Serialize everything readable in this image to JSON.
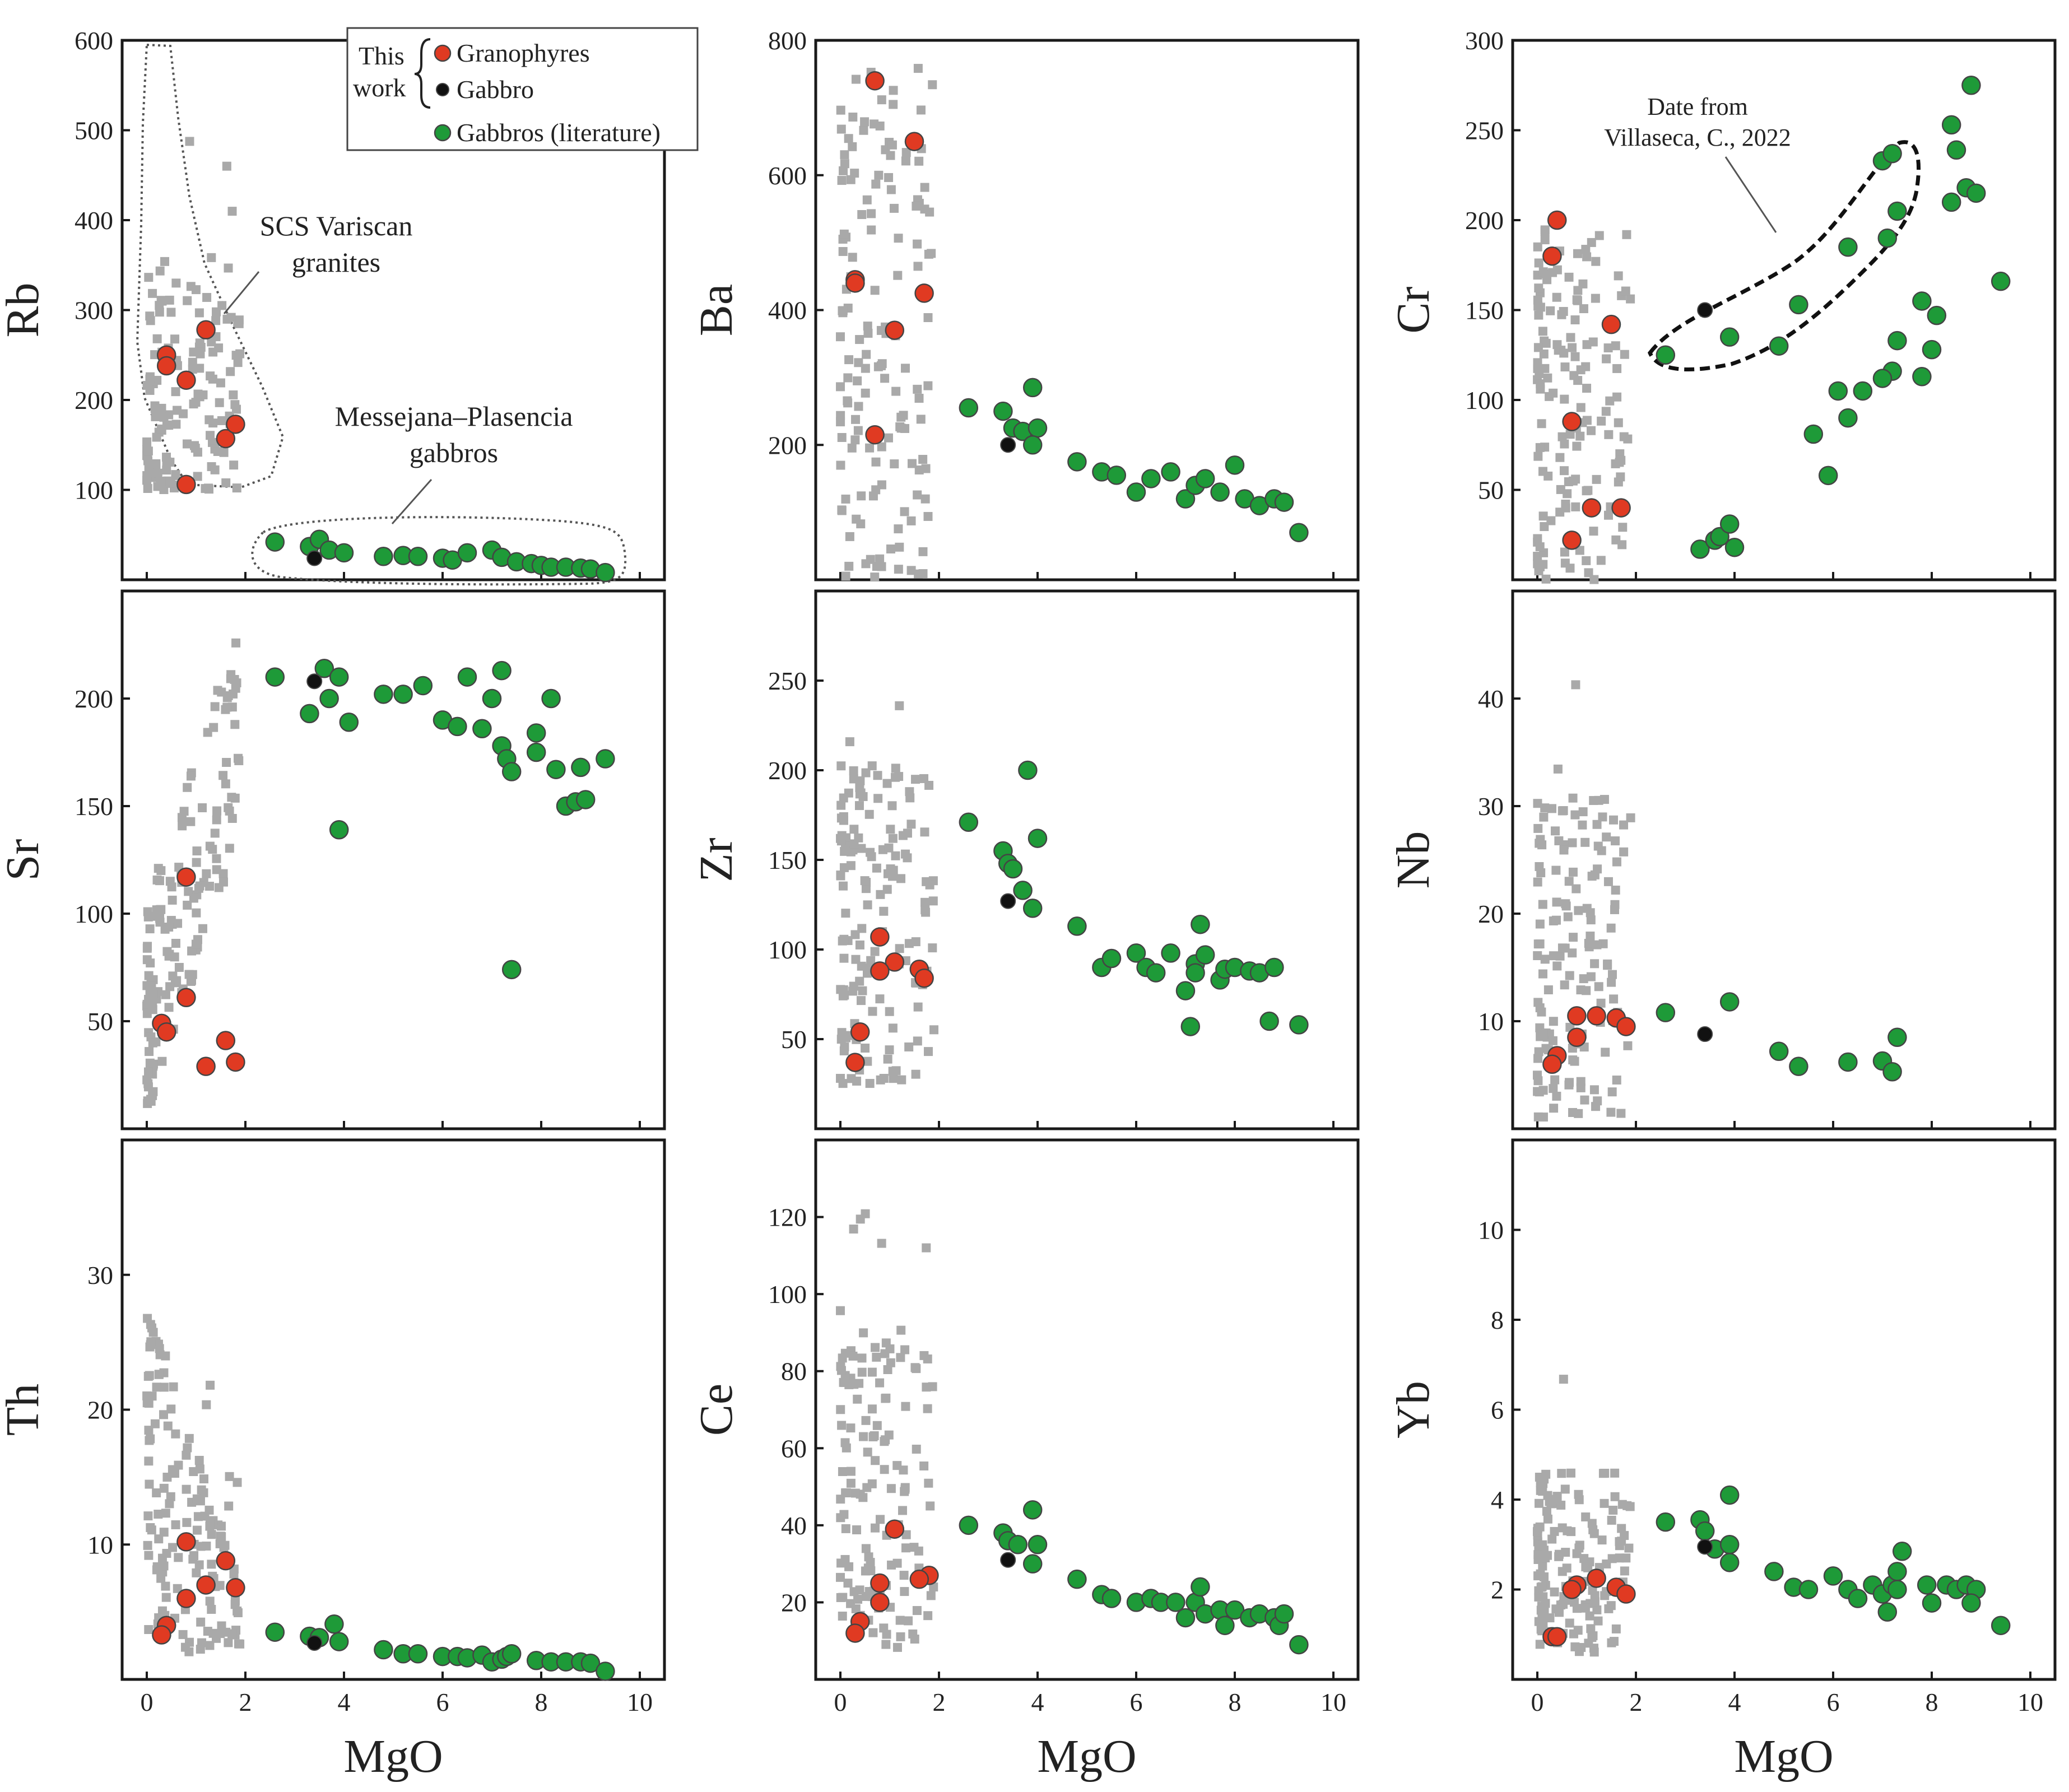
{
  "legend": {
    "group_label_line1": "This",
    "group_label_line2": "work",
    "items": [
      {
        "label": "Granophyres",
        "color": "#e03a22"
      },
      {
        "label": "Gabbro",
        "color": "#111111"
      },
      {
        "label": "Gabbros (literature)",
        "color": "#1e9a38"
      }
    ]
  },
  "annotations": {
    "scs_line1": "SCS Variscan",
    "scs_line2": "granites",
    "mp_line1": "Messejana–Plasencia",
    "mp_line2": "gabbros",
    "date_line1": "Date from",
    "date_line2": "Villaseca, C., 2022"
  },
  "colors": {
    "granophyres": "#e03a22",
    "gabbro": "#111111",
    "gabbros_literature": "#1e9a38",
    "scs_granites": "#a9a9a9"
  },
  "chart_data": [
    {
      "type": "scatter",
      "xlabel": "MgO",
      "ylabel": "Rb",
      "xlim": [
        -0.5,
        10.5
      ],
      "ylim": [
        0,
        600
      ],
      "xticks": [
        "0",
        "2",
        "4",
        "6",
        "8",
        "10"
      ],
      "yticks": [
        "100",
        "200",
        "300",
        "400",
        "500",
        "600"
      ],
      "granophyres": [
        [
          0.4,
          250
        ],
        [
          0.4,
          238
        ],
        [
          0.8,
          222
        ],
        [
          1.2,
          278
        ],
        [
          1.6,
          157
        ],
        [
          1.8,
          173
        ],
        [
          0.8,
          106
        ]
      ],
      "gabbro": [
        [
          3.4,
          24
        ]
      ],
      "gabbros_literature": [
        [
          2.6,
          42
        ],
        [
          3.3,
          37
        ],
        [
          3.5,
          45
        ],
        [
          3.7,
          33
        ],
        [
          4.0,
          30
        ],
        [
          4.8,
          26
        ],
        [
          5.2,
          27
        ],
        [
          5.5,
          26
        ],
        [
          6.0,
          24
        ],
        [
          6.2,
          22
        ],
        [
          6.5,
          30
        ],
        [
          7.0,
          33
        ],
        [
          7.2,
          25
        ],
        [
          7.5,
          20
        ],
        [
          7.8,
          18
        ],
        [
          8.0,
          16
        ],
        [
          8.2,
          14
        ],
        [
          8.5,
          14
        ],
        [
          8.8,
          13
        ],
        [
          9.0,
          12
        ],
        [
          9.3,
          8
        ]
      ]
    },
    {
      "type": "scatter",
      "xlabel": "MgO",
      "ylabel": "Ba",
      "xlim": [
        -0.5,
        10.5
      ],
      "ylim": [
        0,
        800
      ],
      "xticks": [
        "0",
        "2",
        "4",
        "6",
        "8",
        "10"
      ],
      "yticks": [
        "200",
        "400",
        "600",
        "800"
      ],
      "granophyres": [
        [
          0.7,
          740
        ],
        [
          1.5,
          650
        ],
        [
          0.3,
          445
        ],
        [
          0.3,
          440
        ],
        [
          1.7,
          425
        ],
        [
          1.1,
          370
        ],
        [
          0.7,
          215
        ]
      ],
      "gabbro": [
        [
          3.4,
          200
        ]
      ],
      "gabbros_literature": [
        [
          2.6,
          255
        ],
        [
          3.3,
          250
        ],
        [
          3.5,
          225
        ],
        [
          3.7,
          220
        ],
        [
          3.9,
          285
        ],
        [
          4.0,
          225
        ],
        [
          3.9,
          200
        ],
        [
          4.8,
          175
        ],
        [
          5.3,
          160
        ],
        [
          5.6,
          155
        ],
        [
          6.0,
          130
        ],
        [
          6.3,
          150
        ],
        [
          6.7,
          160
        ],
        [
          7.0,
          120
        ],
        [
          7.2,
          140
        ],
        [
          7.4,
          150
        ],
        [
          7.7,
          130
        ],
        [
          8.0,
          170
        ],
        [
          8.2,
          120
        ],
        [
          8.5,
          110
        ],
        [
          8.8,
          120
        ],
        [
          9.0,
          115
        ],
        [
          9.3,
          70
        ]
      ]
    },
    {
      "type": "scatter",
      "xlabel": "MgO",
      "ylabel": "Cr",
      "xlim": [
        -0.5,
        10.5
      ],
      "ylim": [
        0,
        300
      ],
      "xticks": [
        "0",
        "2",
        "4",
        "6",
        "8",
        "10"
      ],
      "yticks": [
        "50",
        "100",
        "150",
        "200",
        "250",
        "300"
      ],
      "granophyres": [
        [
          0.4,
          200
        ],
        [
          0.3,
          180
        ],
        [
          1.5,
          142
        ],
        [
          0.7,
          88
        ],
        [
          1.1,
          40
        ],
        [
          1.7,
          40
        ],
        [
          0.7,
          22
        ]
      ],
      "gabbro": [
        [
          3.4,
          150
        ]
      ],
      "gabbros_literature": [
        [
          2.6,
          125
        ],
        [
          3.9,
          135
        ],
        [
          4.9,
          130
        ],
        [
          5.3,
          153
        ],
        [
          6.3,
          185
        ],
        [
          7.0,
          233
        ],
        [
          7.2,
          237
        ],
        [
          7.3,
          205
        ],
        [
          7.1,
          190
        ],
        [
          8.4,
          253
        ],
        [
          8.5,
          239
        ],
        [
          8.8,
          275
        ],
        [
          8.7,
          218
        ],
        [
          8.9,
          215
        ],
        [
          8.4,
          210
        ],
        [
          9.4,
          166
        ],
        [
          7.8,
          155
        ],
        [
          8.1,
          147
        ],
        [
          8.0,
          128
        ],
        [
          7.3,
          133
        ],
        [
          7.8,
          113
        ],
        [
          7.2,
          116
        ],
        [
          7.0,
          112
        ],
        [
          6.6,
          105
        ],
        [
          6.1,
          105
        ],
        [
          6.3,
          90
        ],
        [
          5.6,
          81
        ],
        [
          5.9,
          58
        ],
        [
          3.3,
          17
        ],
        [
          3.6,
          22
        ],
        [
          3.7,
          24
        ],
        [
          3.9,
          31
        ],
        [
          4.0,
          18
        ]
      ]
    },
    {
      "type": "scatter",
      "xlabel": "MgO",
      "ylabel": "Sr",
      "xlim": [
        -0.5,
        10.5
      ],
      "ylim": [
        0,
        250
      ],
      "xticks": [
        "0",
        "2",
        "4",
        "6",
        "8",
        "10"
      ],
      "yticks": [
        "50",
        "100",
        "150",
        "200"
      ],
      "granophyres": [
        [
          0.8,
          117
        ],
        [
          0.8,
          61
        ],
        [
          0.3,
          49
        ],
        [
          0.4,
          45
        ],
        [
          1.6,
          41
        ],
        [
          1.8,
          31
        ],
        [
          1.2,
          29
        ]
      ],
      "gabbro": [
        [
          3.4,
          208
        ]
      ],
      "gabbros_literature": [
        [
          2.6,
          210
        ],
        [
          3.3,
          193
        ],
        [
          3.6,
          214
        ],
        [
          3.7,
          200
        ],
        [
          3.9,
          210
        ],
        [
          4.1,
          189
        ],
        [
          3.9,
          139
        ],
        [
          4.8,
          202
        ],
        [
          5.2,
          202
        ],
        [
          5.6,
          206
        ],
        [
          6.0,
          190
        ],
        [
          6.3,
          187
        ],
        [
          6.5,
          210
        ],
        [
          6.8,
          186
        ],
        [
          7.0,
          200
        ],
        [
          7.2,
          213
        ],
        [
          7.2,
          178
        ],
        [
          7.3,
          172
        ],
        [
          7.4,
          166
        ],
        [
          7.4,
          74
        ],
        [
          7.9,
          184
        ],
        [
          7.9,
          175
        ],
        [
          8.2,
          200
        ],
        [
          8.3,
          167
        ],
        [
          8.5,
          150
        ],
        [
          8.7,
          152
        ],
        [
          8.8,
          168
        ],
        [
          8.9,
          153
        ],
        [
          9.3,
          172
        ]
      ]
    },
    {
      "type": "scatter",
      "xlabel": "MgO",
      "ylabel": "Zr",
      "xlim": [
        -0.5,
        10.5
      ],
      "ylim": [
        0,
        300
      ],
      "xticks": [
        "0",
        "2",
        "4",
        "6",
        "8",
        "10"
      ],
      "yticks": [
        "50",
        "100",
        "150",
        "200",
        "250"
      ],
      "granophyres": [
        [
          0.8,
          107
        ],
        [
          1.1,
          93
        ],
        [
          0.8,
          88
        ],
        [
          1.6,
          89
        ],
        [
          1.7,
          84
        ],
        [
          0.4,
          54
        ],
        [
          0.3,
          37
        ]
      ],
      "gabbro": [
        [
          3.4,
          127
        ]
      ],
      "gabbros_literature": [
        [
          2.6,
          171
        ],
        [
          3.3,
          155
        ],
        [
          3.4,
          148
        ],
        [
          3.5,
          145
        ],
        [
          3.7,
          133
        ],
        [
          3.9,
          123
        ],
        [
          3.8,
          200
        ],
        [
          4.0,
          162
        ],
        [
          4.8,
          113
        ],
        [
          5.3,
          90
        ],
        [
          5.5,
          95
        ],
        [
          6.0,
          98
        ],
        [
          6.2,
          90
        ],
        [
          6.4,
          87
        ],
        [
          6.7,
          98
        ],
        [
          7.0,
          77
        ],
        [
          7.2,
          92
        ],
        [
          7.2,
          87
        ],
        [
          7.3,
          114
        ],
        [
          7.4,
          97
        ],
        [
          7.7,
          83
        ],
        [
          7.8,
          89
        ],
        [
          8.0,
          90
        ],
        [
          8.3,
          88
        ],
        [
          8.5,
          87
        ],
        [
          8.8,
          90
        ],
        [
          7.1,
          57
        ],
        [
          8.7,
          60
        ],
        [
          9.3,
          58
        ]
      ]
    },
    {
      "type": "scatter",
      "xlabel": "MgO",
      "ylabel": "Nb",
      "xlim": [
        -0.5,
        10.5
      ],
      "ylim": [
        0,
        50
      ],
      "xticks": [
        "0",
        "2",
        "4",
        "6",
        "8",
        "10"
      ],
      "yticks": [
        "10",
        "20",
        "30",
        "40"
      ],
      "granophyres": [
        [
          0.8,
          10.5
        ],
        [
          1.2,
          10.5
        ],
        [
          1.6,
          10.3
        ],
        [
          1.8,
          9.5
        ],
        [
          0.8,
          8.5
        ],
        [
          0.4,
          6.8
        ],
        [
          0.3,
          6.0
        ]
      ],
      "gabbro": [
        [
          3.4,
          8.8
        ]
      ],
      "gabbros_literature": [
        [
          2.6,
          10.8
        ],
        [
          3.9,
          11.8
        ],
        [
          4.9,
          7.2
        ],
        [
          5.3,
          5.8
        ],
        [
          6.3,
          6.2
        ],
        [
          7.0,
          6.3
        ],
        [
          7.2,
          5.3
        ],
        [
          7.3,
          8.5
        ]
      ]
    },
    {
      "type": "scatter",
      "xlabel": "MgO",
      "ylabel": "Th",
      "xlim": [
        -0.5,
        10.5
      ],
      "ylim": [
        0,
        40
      ],
      "xticks": [
        "0",
        "2",
        "4",
        "6",
        "8",
        "10"
      ],
      "yticks": [
        "10",
        "20",
        "30"
      ],
      "granophyres": [
        [
          0.8,
          10.2
        ],
        [
          1.6,
          8.8
        ],
        [
          1.8,
          6.8
        ],
        [
          1.2,
          7.0
        ],
        [
          0.8,
          6.0
        ],
        [
          0.4,
          4.0
        ],
        [
          0.3,
          3.3
        ]
      ],
      "gabbro": [
        [
          3.4,
          2.7
        ]
      ],
      "gabbros_literature": [
        [
          2.6,
          3.5
        ],
        [
          3.3,
          3.2
        ],
        [
          3.5,
          3.1
        ],
        [
          3.8,
          4.1
        ],
        [
          3.9,
          2.8
        ],
        [
          4.8,
          2.2
        ],
        [
          5.2,
          1.9
        ],
        [
          5.5,
          1.9
        ],
        [
          6.0,
          1.7
        ],
        [
          6.3,
          1.7
        ],
        [
          6.5,
          1.6
        ],
        [
          6.8,
          1.8
        ],
        [
          7.0,
          1.3
        ],
        [
          7.2,
          1.5
        ],
        [
          7.3,
          1.7
        ],
        [
          7.4,
          1.9
        ],
        [
          7.9,
          1.4
        ],
        [
          8.2,
          1.3
        ],
        [
          8.5,
          1.3
        ],
        [
          8.8,
          1.3
        ],
        [
          9.0,
          1.2
        ],
        [
          9.3,
          0.6
        ]
      ]
    },
    {
      "type": "scatter",
      "xlabel": "MgO",
      "ylabel": "Ce",
      "xlim": [
        -0.5,
        10.5
      ],
      "ylim": [
        0,
        140
      ],
      "xticks": [
        "0",
        "2",
        "4",
        "6",
        "8",
        "10"
      ],
      "yticks": [
        "20",
        "40",
        "60",
        "80",
        "100",
        "120"
      ],
      "granophyres": [
        [
          1.1,
          39
        ],
        [
          0.8,
          25
        ],
        [
          1.8,
          27
        ],
        [
          1.6,
          26
        ],
        [
          0.8,
          20
        ],
        [
          0.4,
          15
        ],
        [
          0.3,
          12
        ]
      ],
      "gabbro": [
        [
          3.4,
          31
        ]
      ],
      "gabbros_literature": [
        [
          2.6,
          40
        ],
        [
          3.3,
          38
        ],
        [
          3.4,
          36
        ],
        [
          3.6,
          35
        ],
        [
          3.9,
          44
        ],
        [
          4.0,
          35
        ],
        [
          3.9,
          30
        ],
        [
          4.8,
          26
        ],
        [
          5.3,
          22
        ],
        [
          5.5,
          21
        ],
        [
          6.0,
          20
        ],
        [
          6.3,
          21
        ],
        [
          6.5,
          20
        ],
        [
          6.8,
          20
        ],
        [
          7.0,
          16
        ],
        [
          7.2,
          20
        ],
        [
          7.3,
          24
        ],
        [
          7.4,
          17
        ],
        [
          7.7,
          18
        ],
        [
          7.8,
          14
        ],
        [
          8.0,
          18
        ],
        [
          8.3,
          16
        ],
        [
          8.5,
          17
        ],
        [
          8.8,
          16
        ],
        [
          8.9,
          14
        ],
        [
          9.0,
          17
        ],
        [
          9.3,
          9
        ]
      ]
    },
    {
      "type": "scatter",
      "xlabel": "MgO",
      "ylabel": "Yb",
      "xlim": [
        -0.5,
        10.5
      ],
      "ylim": [
        0,
        12
      ],
      "xticks": [
        "0",
        "2",
        "4",
        "6",
        "8",
        "10"
      ],
      "yticks": [
        "2",
        "4",
        "6",
        "8",
        "10"
      ],
      "granophyres": [
        [
          0.8,
          2.1
        ],
        [
          0.7,
          2.0
        ],
        [
          1.2,
          2.25
        ],
        [
          1.6,
          2.05
        ],
        [
          1.8,
          1.9
        ],
        [
          0.3,
          0.95
        ],
        [
          0.4,
          0.95
        ]
      ],
      "gabbro": [
        [
          3.4,
          2.95
        ]
      ],
      "gabbros_literature": [
        [
          2.6,
          3.5
        ],
        [
          3.3,
          3.55
        ],
        [
          3.4,
          3.3
        ],
        [
          3.6,
          2.9
        ],
        [
          3.9,
          4.1
        ],
        [
          3.9,
          3.0
        ],
        [
          3.9,
          2.6
        ],
        [
          4.8,
          2.4
        ],
        [
          5.2,
          2.05
        ],
        [
          5.5,
          2.0
        ],
        [
          6.0,
          2.3
        ],
        [
          6.3,
          2.0
        ],
        [
          6.5,
          1.8
        ],
        [
          6.8,
          2.1
        ],
        [
          7.0,
          1.9
        ],
        [
          7.1,
          1.5
        ],
        [
          7.2,
          2.1
        ],
        [
          7.3,
          2.4
        ],
        [
          7.4,
          2.85
        ],
        [
          7.3,
          2.0
        ],
        [
          7.9,
          2.1
        ],
        [
          8.0,
          1.7
        ],
        [
          8.3,
          2.1
        ],
        [
          8.5,
          2.0
        ],
        [
          8.7,
          2.1
        ],
        [
          8.9,
          2.0
        ],
        [
          8.8,
          1.7
        ],
        [
          9.4,
          1.2
        ]
      ]
    }
  ]
}
